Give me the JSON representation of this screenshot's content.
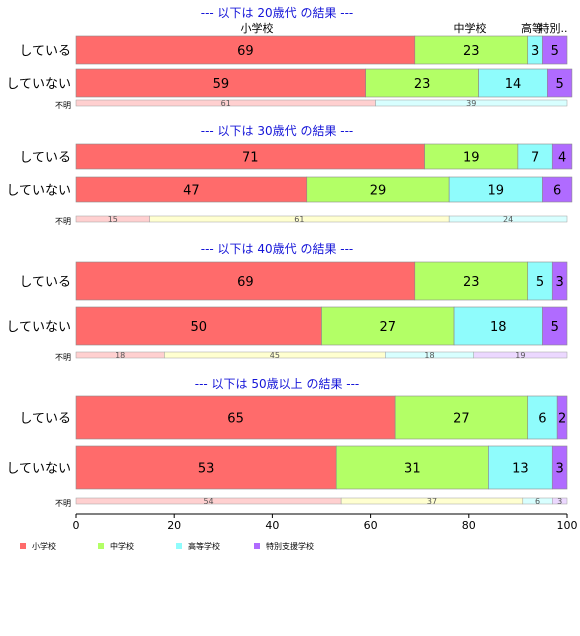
{
  "chart_data": {
    "type": "bar",
    "orientation": "horizontal",
    "stacked": "percent",
    "xlim": [
      0,
      100
    ],
    "xticks": [
      0,
      20,
      40,
      60,
      80,
      100
    ],
    "grid": false,
    "legend_position": "bottom",
    "categories": [
      "小学校",
      "中学校",
      "高等学校",
      "特別支援学校"
    ],
    "category_header_labels": [
      "小学校",
      "中学校",
      "高等",
      "特別.."
    ],
    "colors": [
      "#ff6b6b",
      "#b3ff66",
      "#8ffcfc",
      "#b06bff"
    ],
    "small_colors": [
      "#ffd0d0",
      "#ffffd0",
      "#d8ffff",
      "#ecd8ff"
    ],
    "panels": [
      {
        "title": "--- 以下は 20歳代 の結果 ---",
        "rows": [
          {
            "label": "している",
            "values": [
              69,
              23,
              3,
              5
            ]
          },
          {
            "label": "していない",
            "values": [
              59,
              23,
              14,
              5
            ]
          }
        ],
        "unknown": {
          "label": "不明",
          "values": [
            61,
            0,
            39,
            0
          ]
        }
      },
      {
        "title": "--- 以下は 30歳代 の結果 ---",
        "rows": [
          {
            "label": "している",
            "values": [
              71,
              19,
              7,
              4
            ]
          },
          {
            "label": "していない",
            "values": [
              47,
              29,
              19,
              6
            ]
          }
        ],
        "unknown": {
          "label": "不明",
          "values": [
            15,
            61,
            24,
            0
          ]
        }
      },
      {
        "title": "--- 以下は 40歳代 の結果 ---",
        "rows": [
          {
            "label": "している",
            "values": [
              69,
              23,
              5,
              3
            ]
          },
          {
            "label": "していない",
            "values": [
              50,
              27,
              18,
              5
            ]
          }
        ],
        "unknown": {
          "label": "不明",
          "values": [
            18,
            45,
            18,
            19
          ]
        }
      },
      {
        "title": "--- 以下は 50歳以上 の結果 ---",
        "rows": [
          {
            "label": "している",
            "values": [
              65,
              27,
              6,
              2
            ]
          },
          {
            "label": "していない",
            "values": [
              53,
              31,
              13,
              3
            ]
          }
        ],
        "unknown": {
          "label": "不明",
          "values": [
            54,
            37,
            6,
            3
          ]
        }
      }
    ]
  }
}
